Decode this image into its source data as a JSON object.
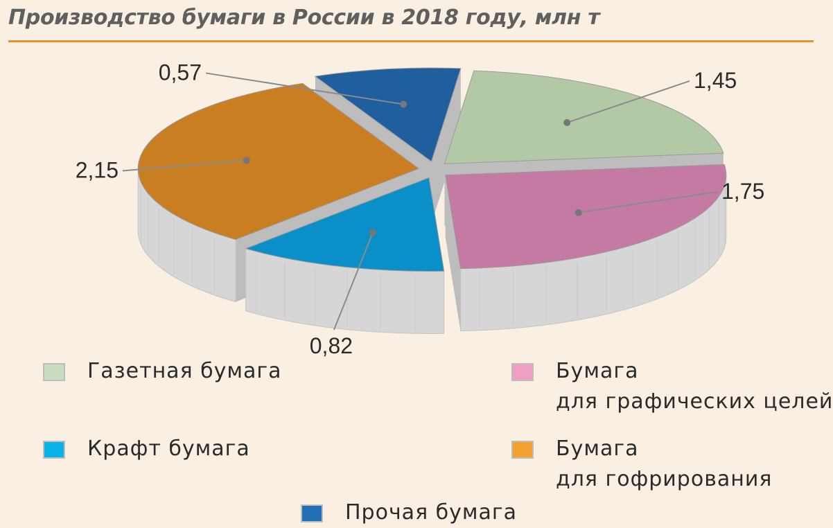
{
  "chart_data": {
    "type": "pie",
    "title": "Производство бумаги в России в 2018 году, млн т",
    "slices": [
      {
        "label": "Газетная бумага",
        "value": 1.45,
        "value_label": "1,45",
        "color": "#b3c9a6"
      },
      {
        "label": "Бумага для графических целей",
        "value": 1.75,
        "value_label": "1,75",
        "color": "#c57aa3"
      },
      {
        "label": "Крафт бумага",
        "value": 0.82,
        "value_label": "0,82",
        "color": "#0a8fc9"
      },
      {
        "label": "Бумага для гофрирования",
        "value": 2.15,
        "value_label": "2,15",
        "color": "#c97e22"
      },
      {
        "label": "Прочая бумага",
        "value": 0.57,
        "value_label": "0,57",
        "color": "#1f5f9e"
      }
    ],
    "legend": [
      {
        "lines": [
          "Газетная бумага"
        ],
        "color": "#c9dcc0"
      },
      {
        "lines": [
          "Бумага",
          "для графических целей"
        ],
        "color": "#ef9fc4"
      },
      {
        "lines": [
          "Крафт бумага"
        ],
        "color": "#0ab2e8"
      },
      {
        "lines": [
          "Бумага",
          "для гофрирования"
        ],
        "color": "#f3a032"
      },
      {
        "lines": [
          "Прочая бумага"
        ],
        "color": "#2170b5"
      }
    ],
    "legend_placement": "bottom",
    "side_color": "#d6d6d6",
    "title_rule_color": "#e8902a"
  }
}
